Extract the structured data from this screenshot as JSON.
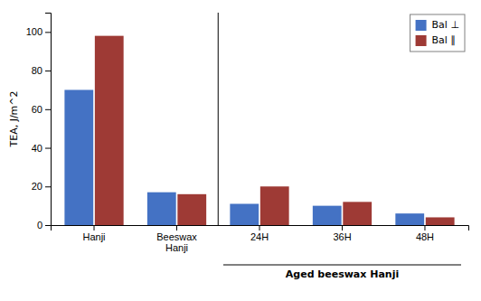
{
  "chart_data": {
    "type": "bar",
    "categories": [
      "Hanji",
      "Beeswax\nHanji",
      "24H",
      "36H",
      "48H"
    ],
    "series": [
      {
        "name": "Bal ⊥",
        "color": "#4472C4",
        "values": [
          70,
          17,
          11,
          10,
          6
        ]
      },
      {
        "name": "Bal ∥",
        "color": "#9E3A35",
        "values": [
          98,
          16,
          20,
          12,
          4
        ]
      }
    ],
    "ylabel": "TEA, J/m^2",
    "ylim": [
      0,
      110
    ],
    "yticks": [
      0,
      20,
      40,
      60,
      80,
      100
    ],
    "annotations": [
      {
        "text": "Aged beeswax Hanji",
        "categories": [
          "24H",
          "36H",
          "48H"
        ]
      }
    ],
    "legend": "upper right",
    "grid": false
  }
}
